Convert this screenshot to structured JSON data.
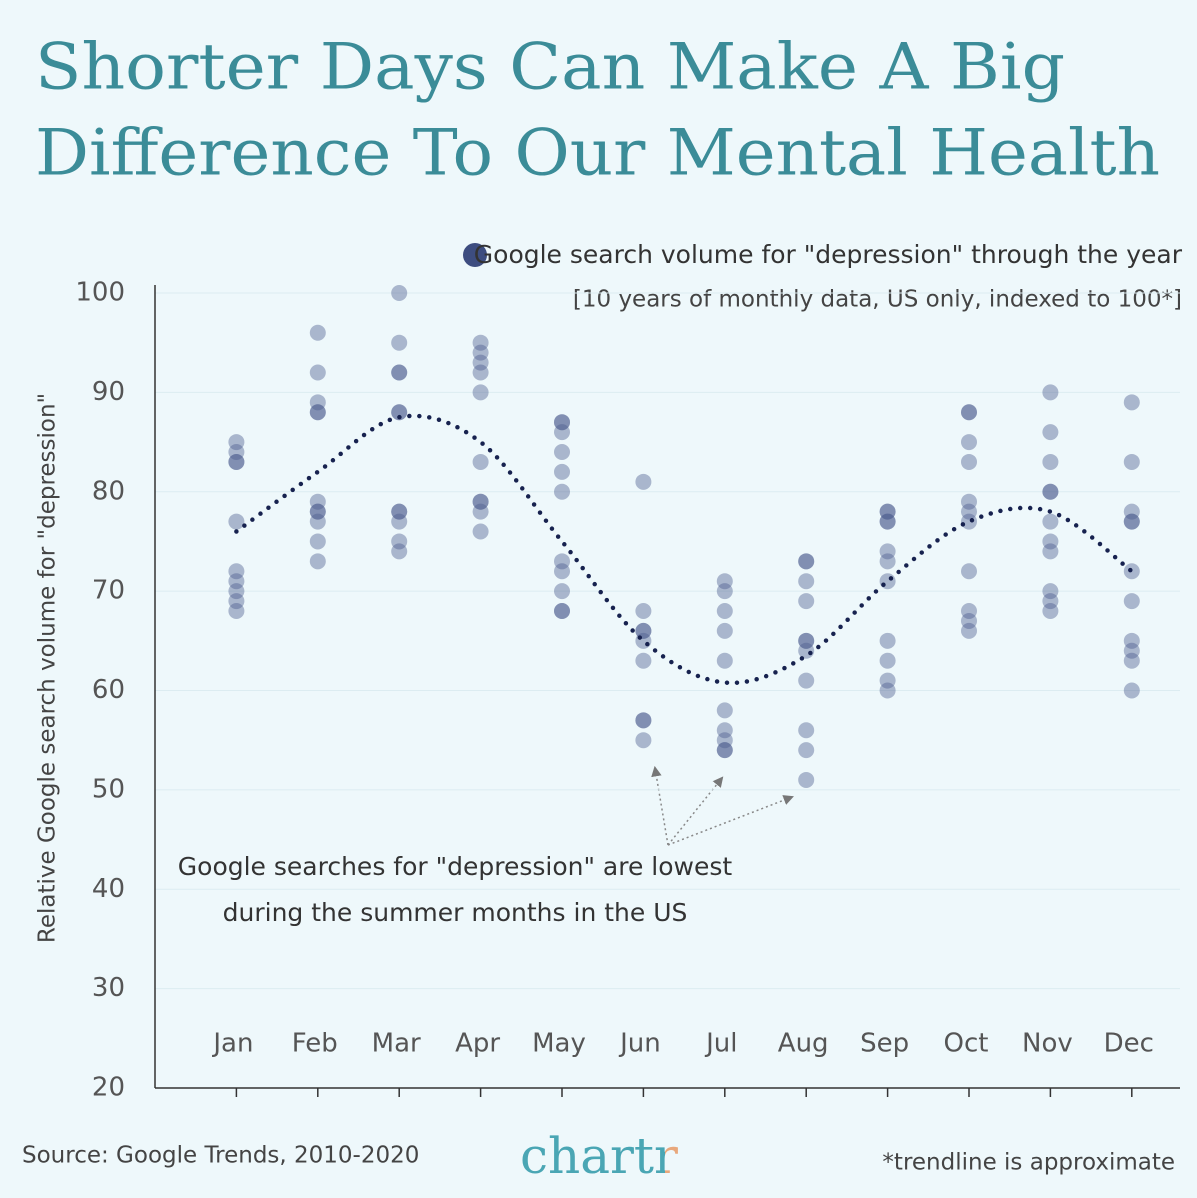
{
  "chart_data": {
    "type": "strip",
    "title": [
      "Shorter Days Can Make A Big",
      "Difference To Our Mental Health"
    ],
    "legend": "Google search volume for \"depression\" through the year",
    "subtitle": "[10 years of monthly data, US only, indexed to 100*]",
    "y_label": "Relative Google search volume for \"depression\"",
    "annotation": [
      "Google searches for \"depression\" are lowest",
      "during the summer months in the US"
    ],
    "source": "Source: Google Trends, 2010-2020",
    "logo": "chartr",
    "footnote": "*trendline is approximate",
    "categories": [
      "Jan",
      "Feb",
      "Mar",
      "Apr",
      "May",
      "Jun",
      "Jul",
      "Aug",
      "Sep",
      "Oct",
      "Nov",
      "Dec"
    ],
    "values": [
      [
        85,
        84,
        83,
        83,
        77,
        72,
        71,
        70,
        69,
        68
      ],
      [
        96,
        92,
        89,
        88,
        88,
        79,
        78,
        78,
        77,
        75,
        73
      ],
      [
        100,
        95,
        92,
        92,
        88,
        88,
        78,
        78,
        77,
        75,
        74
      ],
      [
        95,
        94,
        93,
        92,
        90,
        83,
        79,
        79,
        78,
        76
      ],
      [
        87,
        87,
        86,
        84,
        82,
        80,
        73,
        72,
        70,
        68,
        68
      ],
      [
        81,
        68,
        66,
        66,
        65,
        63,
        57,
        57,
        55
      ],
      [
        71,
        70,
        68,
        66,
        63,
        58,
        56,
        55,
        54,
        54
      ],
      [
        73,
        73,
        71,
        69,
        65,
        65,
        64,
        61,
        56,
        54,
        51
      ],
      [
        78,
        78,
        77,
        77,
        74,
        73,
        71,
        65,
        63,
        61,
        60
      ],
      [
        88,
        88,
        85,
        83,
        79,
        78,
        77,
        72,
        68,
        67,
        66
      ],
      [
        90,
        86,
        83,
        80,
        80,
        77,
        75,
        74,
        70,
        69,
        68
      ],
      [
        89,
        83,
        78,
        77,
        77,
        72,
        69,
        65,
        64,
        63,
        60
      ]
    ],
    "trend": [
      76,
      82,
      87.5,
      85,
      75,
      65,
      60.8,
      63.5,
      71,
      77,
      78,
      72
    ],
    "color": "#4a5a8c",
    "trend_color": "#17224f",
    "ylim": [
      20,
      100
    ],
    "yticks": [
      20,
      30,
      40,
      50,
      60,
      70,
      80,
      90,
      100
    ],
    "grid": true
  }
}
